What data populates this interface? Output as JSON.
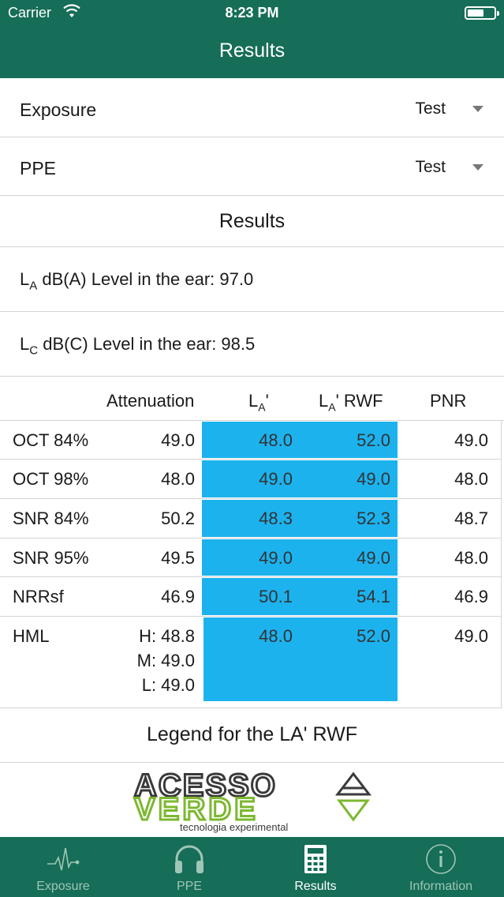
{
  "status": {
    "carrier": "Carrier",
    "time": "8:23 PM"
  },
  "nav": {
    "title": "Results"
  },
  "selects": [
    {
      "label": "Exposure",
      "value": "Test"
    },
    {
      "label": "PPE",
      "value": "Test"
    }
  ],
  "results_title": "Results",
  "levels": {
    "a": {
      "prefix": "L",
      "sub": "A",
      "text": " dB(A) Level in the ear: 97.0"
    },
    "c": {
      "prefix": "L",
      "sub": "C",
      "text": " dB(C) Level in the ear: 98.5"
    }
  },
  "table": {
    "headers": {
      "attenuation": "Attenuation",
      "la_prefix": "L",
      "la_sub": "A",
      "la_suffix": "'",
      "larwf_prefix": "L",
      "larwf_sub": "A",
      "larwf_suffix": "' RWF",
      "pnr": "PNR"
    },
    "rows": [
      {
        "name": "OCT 84%",
        "attenuation": "49.0",
        "la": "48.0",
        "larwf": "52.0",
        "pnr": "49.0"
      },
      {
        "name": "OCT 98%",
        "attenuation": "48.0",
        "la": "49.0",
        "larwf": "49.0",
        "pnr": "48.0"
      },
      {
        "name": "SNR 84%",
        "attenuation": "50.2",
        "la": "48.3",
        "larwf": "52.3",
        "pnr": "48.7"
      },
      {
        "name": "SNR 95%",
        "attenuation": "49.5",
        "la": "49.0",
        "larwf": "49.0",
        "pnr": "48.0"
      },
      {
        "name": "NRRsf",
        "attenuation": "46.9",
        "la": "50.1",
        "larwf": "54.1",
        "pnr": "46.9"
      }
    ],
    "hml": {
      "name": "HML",
      "h": "H: 48.8",
      "m": "M: 49.0",
      "l": "L: 49.0",
      "la": "48.0",
      "larwf": "52.0",
      "pnr": "49.0"
    },
    "highlight_color": "#1cb2ee"
  },
  "legend_title": "Legend for the LA' RWF",
  "logo": {
    "line1": "ACESSO",
    "line2": "VERDE",
    "tagline": "tecnologia experimental"
  },
  "tabs": [
    {
      "label": "Exposure",
      "icon": "waveform-icon"
    },
    {
      "label": "PPE",
      "icon": "headphones-icon"
    },
    {
      "label": "Results",
      "icon": "calculator-icon",
      "active": true
    },
    {
      "label": "Information",
      "icon": "info-icon"
    }
  ],
  "colors": {
    "brand": "#166d58",
    "tab_inactive": "#9fc6b6",
    "logo_green": "#7cb82f",
    "logo_dark": "#3a3a3a"
  }
}
